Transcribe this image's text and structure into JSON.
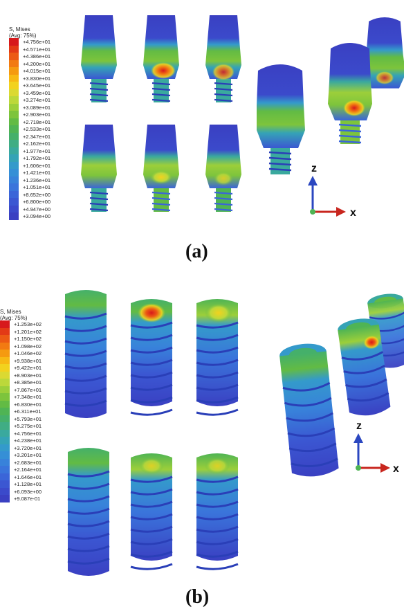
{
  "panel_a": {
    "legend": {
      "title_line1": "S, Mises",
      "title_line2": "(Avg: 75%)",
      "values": [
        "+4.756e+01",
        "+4.571e+01",
        "+4.386e+01",
        "+4.200e+01",
        "+4.015e+01",
        "+3.830e+01",
        "+3.645e+01",
        "+3.459e+01",
        "+3.274e+01",
        "+3.089e+01",
        "+2.903e+01",
        "+2.718e+01",
        "+2.533e+01",
        "+2.347e+01",
        "+2.162e+01",
        "+1.977e+01",
        "+1.792e+01",
        "+1.606e+01",
        "+1.421e+01",
        "+1.236e+01",
        "+1.051e+01",
        "+8.652e+00",
        "+6.800e+00",
        "+4.947e+00",
        "+3.094e+00"
      ]
    },
    "axes": {
      "z": "z",
      "x": "x"
    },
    "label": "(a)"
  },
  "panel_b": {
    "legend": {
      "title_line1": "S, Mises",
      "title_line2": "(Avg: 75%)",
      "values": [
        "+1.253e+02",
        "+1.201e+02",
        "+1.150e+02",
        "+1.098e+02",
        "+1.046e+02",
        "+9.938e+01",
        "+9.422e+01",
        "+8.903e+01",
        "+8.385e+01",
        "+7.867e+01",
        "+7.348e+01",
        "+6.830e+01",
        "+6.311e+01",
        "+5.793e+01",
        "+5.275e+01",
        "+4.756e+01",
        "+4.238e+01",
        "+3.720e+01",
        "+3.201e+01",
        "+2.683e+01",
        "+2.164e+01",
        "+1.646e+01",
        "+1.128e+01",
        "+6.093e+00",
        "+9.087e-01"
      ]
    },
    "axes": {
      "z": "z",
      "x": "x"
    },
    "label": "(b)"
  },
  "colors": {
    "scale": [
      "#d7191c",
      "#e33a16",
      "#ec5a14",
      "#f27a12",
      "#f59a10",
      "#f7b914",
      "#f2d21e",
      "#dbd932",
      "#bcd83a",
      "#9ccf3a",
      "#7dc43c",
      "#62bb44",
      "#4fb454",
      "#45b06a",
      "#40ad84",
      "#3aa99e",
      "#35a3b6",
      "#349acb",
      "#358fd6",
      "#3882da",
      "#3a74db",
      "#3b65d8",
      "#3b57d2",
      "#3b4acb",
      "#3a40c2"
    ],
    "deep_blue": "#2a3fb8",
    "axis_z": "#2b47c0",
    "axis_x": "#c8261e"
  }
}
